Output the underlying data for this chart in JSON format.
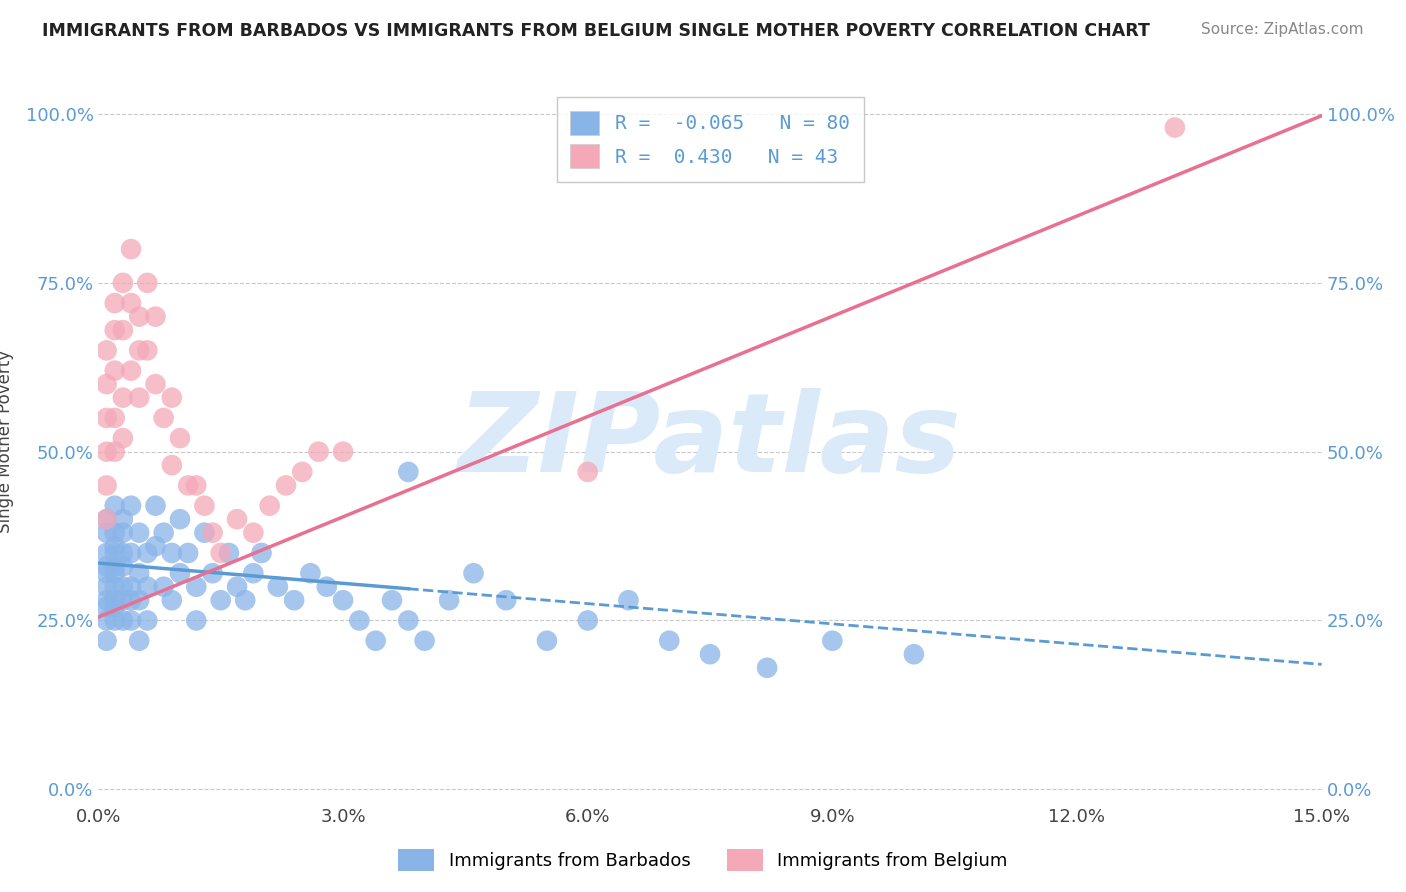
{
  "title": "IMMIGRANTS FROM BARBADOS VS IMMIGRANTS FROM BELGIUM SINGLE MOTHER POVERTY CORRELATION CHART",
  "source": "Source: ZipAtlas.com",
  "ylabel": "Single Mother Poverty",
  "legend_label1": "Immigrants from Barbados",
  "legend_label2": "Immigrants from Belgium",
  "R1": -0.065,
  "N1": 80,
  "R2": 0.43,
  "N2": 43,
  "xlim": [
    0.0,
    0.15
  ],
  "ylim": [
    -0.02,
    1.05
  ],
  "xticks": [
    0.0,
    0.03,
    0.06,
    0.09,
    0.12,
    0.15
  ],
  "xticklabels": [
    "0.0%",
    "3.0%",
    "6.0%",
    "9.0%",
    "12.0%",
    "15.0%"
  ],
  "yticks": [
    0.0,
    0.25,
    0.5,
    0.75,
    1.0
  ],
  "yticklabels": [
    "0.0%",
    "25.0%",
    "50.0%",
    "75.0%",
    "100.0%"
  ],
  "color_blue": "#89b4e8",
  "color_pink": "#f4a8b8",
  "color_line_blue": "#5b9bd5",
  "color_line_pink": "#e87090",
  "watermark": "ZIPatlas",
  "watermark_color": "#daeaf8",
  "background_color": "#ffffff",
  "grid_color": "#bbbbbb",
  "blue_x": [
    0.001,
    0.001,
    0.001,
    0.001,
    0.001,
    0.001,
    0.001,
    0.001,
    0.001,
    0.001,
    0.002,
    0.002,
    0.002,
    0.002,
    0.002,
    0.002,
    0.002,
    0.002,
    0.002,
    0.002,
    0.003,
    0.003,
    0.003,
    0.003,
    0.003,
    0.003,
    0.003,
    0.004,
    0.004,
    0.004,
    0.004,
    0.004,
    0.005,
    0.005,
    0.005,
    0.005,
    0.006,
    0.006,
    0.006,
    0.007,
    0.007,
    0.008,
    0.008,
    0.009,
    0.009,
    0.01,
    0.01,
    0.011,
    0.012,
    0.012,
    0.013,
    0.014,
    0.015,
    0.016,
    0.017,
    0.018,
    0.019,
    0.02,
    0.022,
    0.024,
    0.026,
    0.028,
    0.03,
    0.032,
    0.034,
    0.036,
    0.038,
    0.04,
    0.043,
    0.046,
    0.05,
    0.055,
    0.06,
    0.065,
    0.07,
    0.075,
    0.082,
    0.09,
    0.1,
    0.038
  ],
  "blue_y": [
    0.35,
    0.33,
    0.3,
    0.28,
    0.25,
    0.32,
    0.38,
    0.27,
    0.22,
    0.4,
    0.36,
    0.32,
    0.28,
    0.25,
    0.38,
    0.3,
    0.42,
    0.35,
    0.27,
    0.33,
    0.4,
    0.35,
    0.3,
    0.25,
    0.28,
    0.38,
    0.33,
    0.35,
    0.42,
    0.28,
    0.3,
    0.25,
    0.38,
    0.32,
    0.28,
    0.22,
    0.35,
    0.3,
    0.25,
    0.42,
    0.36,
    0.38,
    0.3,
    0.35,
    0.28,
    0.4,
    0.32,
    0.35,
    0.3,
    0.25,
    0.38,
    0.32,
    0.28,
    0.35,
    0.3,
    0.28,
    0.32,
    0.35,
    0.3,
    0.28,
    0.32,
    0.3,
    0.28,
    0.25,
    0.22,
    0.28,
    0.25,
    0.22,
    0.28,
    0.32,
    0.28,
    0.22,
    0.25,
    0.28,
    0.22,
    0.2,
    0.18,
    0.22,
    0.2,
    0.47
  ],
  "pink_x": [
    0.001,
    0.001,
    0.001,
    0.001,
    0.001,
    0.001,
    0.002,
    0.002,
    0.002,
    0.002,
    0.002,
    0.003,
    0.003,
    0.003,
    0.003,
    0.004,
    0.004,
    0.004,
    0.005,
    0.005,
    0.005,
    0.006,
    0.006,
    0.007,
    0.007,
    0.008,
    0.009,
    0.009,
    0.01,
    0.011,
    0.012,
    0.013,
    0.014,
    0.015,
    0.017,
    0.019,
    0.021,
    0.023,
    0.025,
    0.027,
    0.03,
    0.06,
    0.132
  ],
  "pink_y": [
    0.6,
    0.55,
    0.65,
    0.5,
    0.45,
    0.4,
    0.72,
    0.68,
    0.62,
    0.55,
    0.5,
    0.75,
    0.68,
    0.58,
    0.52,
    0.8,
    0.72,
    0.62,
    0.65,
    0.7,
    0.58,
    0.75,
    0.65,
    0.7,
    0.6,
    0.55,
    0.58,
    0.48,
    0.52,
    0.45,
    0.45,
    0.42,
    0.38,
    0.35,
    0.4,
    0.38,
    0.42,
    0.45,
    0.47,
    0.5,
    0.5,
    0.47,
    0.98
  ],
  "blue_line_x": [
    0.0,
    0.038,
    0.038,
    0.15
  ],
  "blue_line_solid_end": 0.038,
  "pink_line_intercept": 0.255,
  "pink_line_slope": 4.95
}
